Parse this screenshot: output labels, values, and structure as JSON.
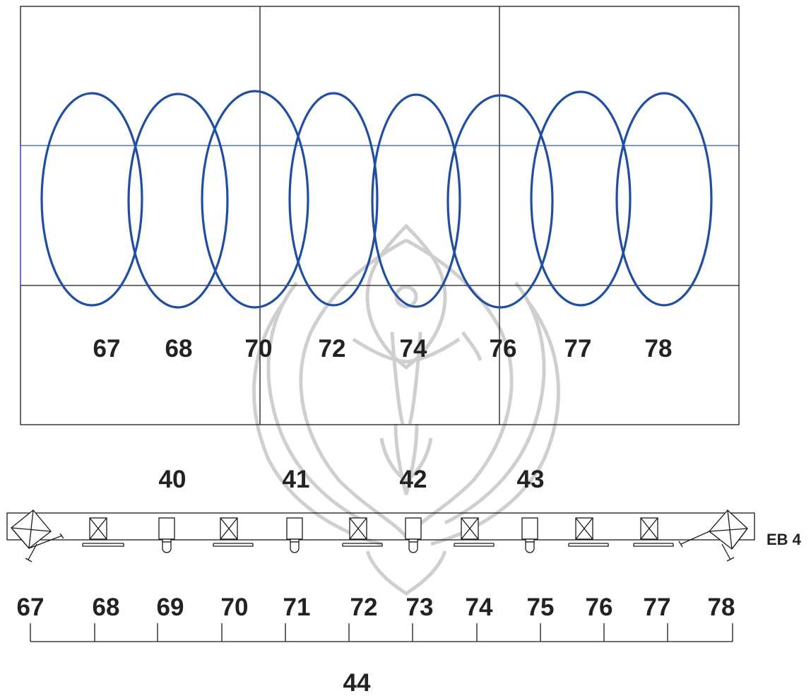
{
  "colors": {
    "line": "#1a1a1a",
    "ellipse": "#1f4ea3",
    "band": "#2a56c8",
    "watermark": "#bdbdbd"
  },
  "top_panel": {
    "ellipse_labels": [
      "67",
      "68",
      "70",
      "72",
      "74",
      "76",
      "77",
      "78"
    ]
  },
  "group_labels": [
    "40",
    "41",
    "42",
    "43"
  ],
  "rail": {
    "side_label": "EB 4",
    "fixtures": [
      {
        "type": "mirror-left-icon"
      },
      {
        "type": "box-x-icon"
      },
      {
        "type": "lamp-icon"
      },
      {
        "type": "box-x-icon"
      },
      {
        "type": "lamp-icon"
      },
      {
        "type": "box-x-icon"
      },
      {
        "type": "lamp-icon"
      },
      {
        "type": "box-x-icon"
      },
      {
        "type": "lamp-icon"
      },
      {
        "type": "box-x-icon"
      },
      {
        "type": "box-x-icon"
      },
      {
        "type": "mirror-right-icon"
      }
    ]
  },
  "bottom_numbers": [
    "67",
    "68",
    "69",
    "70",
    "71",
    "72",
    "73",
    "74",
    "75",
    "76",
    "77",
    "78"
  ],
  "bracket_label": "44",
  "watermark": {
    "icon": "emblem-watermark-icon"
  }
}
